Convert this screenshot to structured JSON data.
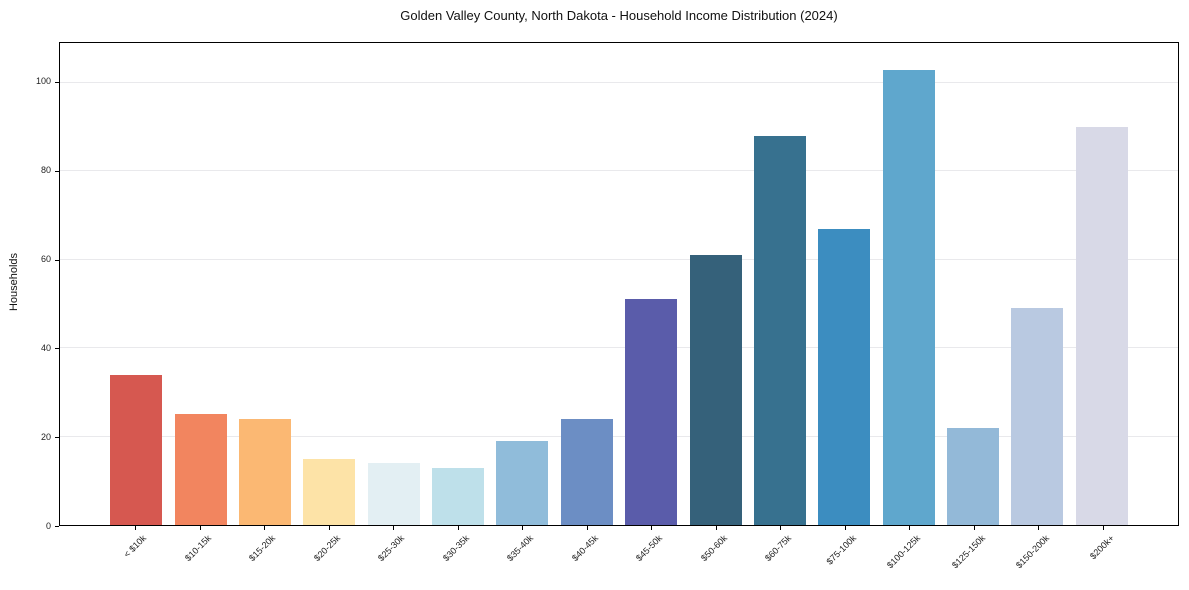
{
  "chart_data": {
    "type": "bar",
    "title": "Golden Valley County, North Dakota - Household Income Distribution (2024)",
    "xlabel": "",
    "ylabel": "Households",
    "categories": [
      "< $10k",
      "$10-15k",
      "$15-20k",
      "$20-25k",
      "$25-30k",
      "$30-35k",
      "$35-40k",
      "$40-45k",
      "$45-50k",
      "$50-60k",
      "$60-75k",
      "$75-100k",
      "$100-125k",
      "$125-150k",
      "$150-200k",
      "$200k+"
    ],
    "values": [
      34,
      25,
      24,
      15,
      14,
      13,
      19,
      24,
      51,
      61,
      88,
      67,
      103,
      22,
      49,
      90
    ],
    "bar_colors": [
      "#d65850",
      "#f2855f",
      "#fbb873",
      "#fde3a7",
      "#e3eff3",
      "#bee0ea",
      "#90bcda",
      "#6c8ec4",
      "#5a5caa",
      "#35617a",
      "#37718f",
      "#3c8dc0",
      "#5fa7cd",
      "#93b9d8",
      "#b9c9e1",
      "#d8d9e7"
    ],
    "yticks": [
      0,
      20,
      40,
      60,
      80,
      100
    ],
    "ylim": [
      0,
      109
    ],
    "grid": "horizontal",
    "legend": "none",
    "axis_color": "#000000",
    "grid_color": "#e9e9ec"
  }
}
